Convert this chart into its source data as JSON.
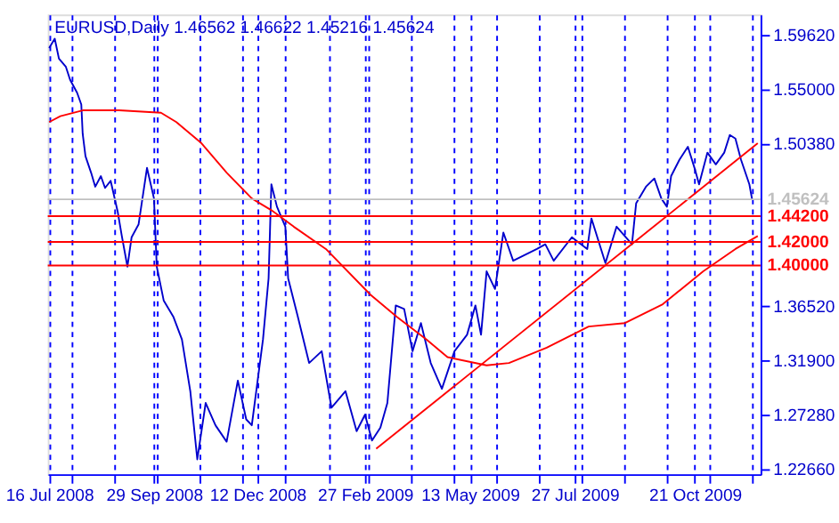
{
  "chart_data": {
    "type": "line",
    "title": "EURUSD,Daily  1.46562 1.46622 1.45216 1.45624",
    "xlim": [
      "2008-07-15",
      "2009-12-07"
    ],
    "ylim": [
      1.2223,
      1.6136
    ],
    "xticks": [
      {
        "value": "2008-07-16",
        "label": "16 Jul 2008"
      },
      {
        "value": "2008-08-01",
        "label": null
      },
      {
        "value": "2008-09-01",
        "label": null
      },
      {
        "value": "2008-09-29",
        "label": "29 Sep 2008"
      },
      {
        "value": "2008-10-01",
        "label": null
      },
      {
        "value": "2008-11-01",
        "label": null
      },
      {
        "value": "2008-12-01",
        "label": null
      },
      {
        "value": "2008-12-12",
        "label": "12 Dec 2008"
      },
      {
        "value": "2009-01-01",
        "label": null
      },
      {
        "value": "2009-02-01",
        "label": null
      },
      {
        "value": "2009-02-27",
        "label": "27 Feb 2009"
      },
      {
        "value": "2009-03-01",
        "label": null
      },
      {
        "value": "2009-04-01",
        "label": null
      },
      {
        "value": "2009-05-01",
        "label": null
      },
      {
        "value": "2009-05-13",
        "label": "13 May 2009"
      },
      {
        "value": "2009-06-01",
        "label": null
      },
      {
        "value": "2009-07-01",
        "label": null
      },
      {
        "value": "2009-07-27",
        "label": "27 Jul 2009"
      },
      {
        "value": "2009-08-01",
        "label": null
      },
      {
        "value": "2009-09-01",
        "label": null
      },
      {
        "value": "2009-10-01",
        "label": null
      },
      {
        "value": "2009-10-21",
        "label": "21 Oct 2009"
      },
      {
        "value": "2009-11-01",
        "label": null
      },
      {
        "value": "2009-12-01",
        "label": null
      }
    ],
    "yticks": [
      {
        "value": 1.5962,
        "label": "1.59620"
      },
      {
        "value": 1.55,
        "label": "1.55000"
      },
      {
        "value": 1.5038,
        "label": "1.50380"
      },
      {
        "value": 1.3652,
        "label": "1.36520"
      },
      {
        "value": 1.319,
        "label": "1.31900"
      },
      {
        "value": 1.2728,
        "label": "1.27280"
      },
      {
        "value": 1.2266,
        "label": "1.22660"
      }
    ],
    "grid": "x",
    "ref_lines": [
      {
        "axis": "y",
        "value": 1.45624,
        "label": "1.45624",
        "color": "#c0c0c0"
      },
      {
        "axis": "y",
        "value": 1.442,
        "label": "1.44200",
        "color": "#ff0000"
      },
      {
        "axis": "y",
        "value": 1.42,
        "label": "1.42000",
        "color": "#ff0000"
      },
      {
        "axis": "y",
        "value": 1.4,
        "label": "1.40000",
        "color": "#ff0000"
      }
    ],
    "series": [
      {
        "color": "#0000cc",
        "x": [
          "2008-07-16",
          "2008-07-20",
          "2008-07-23",
          "2008-07-28",
          "2008-07-31",
          "2008-08-05",
          "2008-08-08",
          "2008-08-09",
          "2008-08-11",
          "2008-08-15",
          "2008-08-18",
          "2008-08-22",
          "2008-08-25",
          "2008-08-29",
          "2008-09-03",
          "2008-09-06",
          "2008-09-10",
          "2008-09-13",
          "2008-09-18",
          "2008-09-24",
          "2008-09-29",
          "2008-10-01",
          "2008-10-06",
          "2008-10-13",
          "2008-10-19",
          "2008-10-25",
          "2008-10-30",
          "2008-11-05",
          "2008-11-12",
          "2008-11-20",
          "2008-11-28",
          "2008-12-04",
          "2008-12-08",
          "2008-12-16",
          "2008-12-20",
          "2008-12-22",
          "2008-12-26",
          "2009-01-01",
          "2009-01-03",
          "2009-01-10",
          "2009-01-18",
          "2009-01-27",
          "2009-02-03",
          "2009-02-13",
          "2009-02-21",
          "2009-02-27",
          "2009-03-04",
          "2009-03-10",
          "2009-03-15",
          "2009-03-21",
          "2009-03-27",
          "2009-04-02",
          "2009-04-08",
          "2009-04-15",
          "2009-04-23",
          "2009-05-02",
          "2009-05-11",
          "2009-05-17",
          "2009-05-21",
          "2009-05-25",
          "2009-05-31",
          "2009-06-06",
          "2009-06-13",
          "2009-06-30",
          "2009-07-06",
          "2009-07-12",
          "2009-07-25",
          "2009-08-05",
          "2009-08-08",
          "2009-08-18",
          "2009-08-26",
          "2009-09-06",
          "2009-09-09",
          "2009-09-16",
          "2009-09-22",
          "2009-09-27",
          "2009-10-01",
          "2009-10-04",
          "2009-10-10",
          "2009-10-16",
          "2009-10-21",
          "2009-10-24",
          "2009-10-30",
          "2009-11-05",
          "2009-11-11",
          "2009-11-15",
          "2009-11-19",
          "2009-11-23",
          "2009-11-27",
          "2009-11-29",
          "2009-12-01"
        ],
        "values": [
          1.585,
          1.593,
          1.576,
          1.569,
          1.558,
          1.547,
          1.537,
          1.512,
          1.493,
          1.479,
          1.467,
          1.476,
          1.466,
          1.472,
          1.446,
          1.425,
          1.399,
          1.424,
          1.435,
          1.483,
          1.457,
          1.399,
          1.37,
          1.356,
          1.337,
          1.293,
          1.235,
          1.283,
          1.264,
          1.25,
          1.302,
          1.269,
          1.264,
          1.337,
          1.389,
          1.469,
          1.45,
          1.433,
          1.389,
          1.356,
          1.317,
          1.327,
          1.279,
          1.293,
          1.259,
          1.273,
          1.251,
          1.262,
          1.283,
          1.366,
          1.363,
          1.327,
          1.351,
          1.317,
          1.295,
          1.327,
          1.341,
          1.366,
          1.341,
          1.395,
          1.38,
          1.428,
          1.404,
          1.414,
          1.418,
          1.404,
          1.424,
          1.414,
          1.44,
          1.402,
          1.433,
          1.418,
          1.453,
          1.467,
          1.474,
          1.457,
          1.45,
          1.476,
          1.49,
          1.501,
          1.482,
          1.469,
          1.496,
          1.486,
          1.496,
          1.511,
          1.508,
          1.49,
          1.476,
          1.469,
          1.456
        ]
      },
      {
        "color": "#ff0000",
        "x": [
          "2008-07-16",
          "2008-07-24",
          "2008-08-09",
          "2008-09-04",
          "2008-10-04",
          "2008-10-15",
          "2008-11-02",
          "2008-11-20",
          "2008-12-08",
          "2008-12-22",
          "2009-01-07",
          "2009-01-30",
          "2009-03-03",
          "2009-03-22",
          "2009-04-12",
          "2009-04-27",
          "2009-05-25",
          "2009-06-10",
          "2009-07-07",
          "2009-08-06",
          "2009-09-01",
          "2009-09-28",
          "2009-10-27",
          "2009-11-19",
          "2009-12-05"
        ],
        "values": [
          1.522,
          1.527,
          1.532,
          1.532,
          1.53,
          1.522,
          1.504,
          1.479,
          1.457,
          1.447,
          1.433,
          1.414,
          1.375,
          1.356,
          1.337,
          1.322,
          1.315,
          1.317,
          1.33,
          1.348,
          1.351,
          1.367,
          1.395,
          1.414,
          1.425
        ]
      },
      {
        "type": "line",
        "color": "#ff0000",
        "x": [
          "2009-03-07",
          "2009-12-05"
        ],
        "values": [
          1.244,
          1.504
        ]
      }
    ]
  }
}
